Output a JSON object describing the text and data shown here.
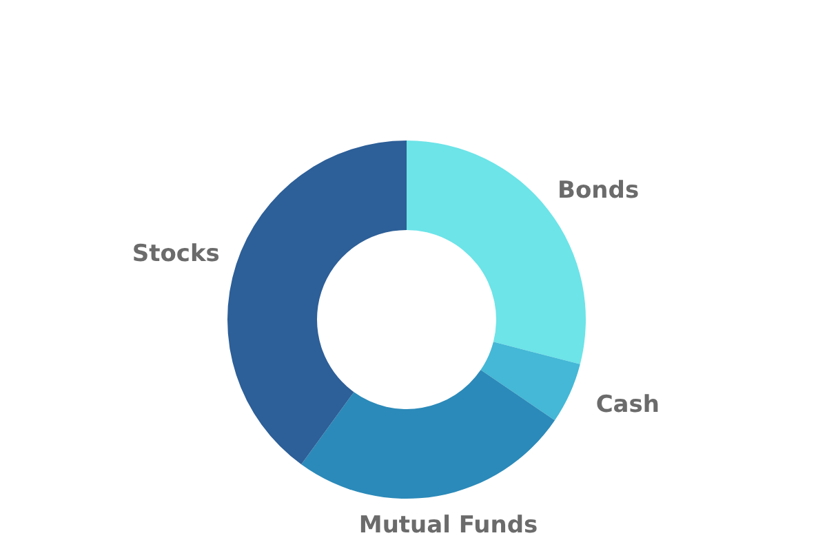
{
  "chart_data": {
    "type": "donut",
    "categories": [
      "Bonds",
      "Cash",
      "Mutual Funds",
      "Stocks"
    ],
    "values": [
      29,
      5.5,
      25.5,
      40
    ],
    "colors": [
      "#6ce4e8",
      "#44b8d6",
      "#2b8ab9",
      "#2d5f98"
    ],
    "legend": false
  }
}
